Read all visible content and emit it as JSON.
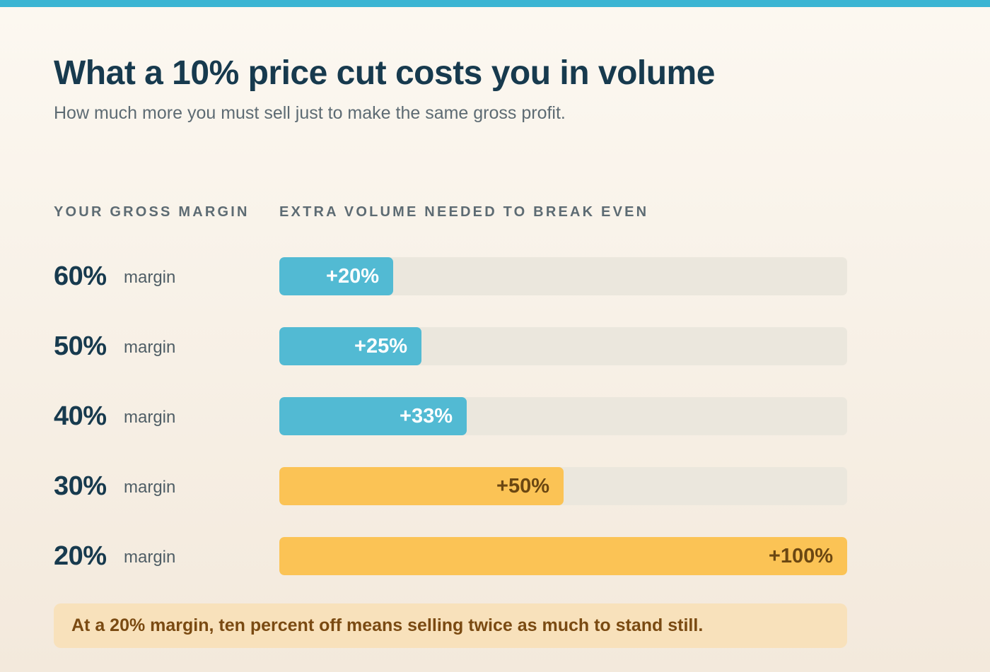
{
  "title": "What a 10% price cut costs you in volume",
  "subtitle": "How much more you must sell just to make the same gross profit.",
  "headers": {
    "left": "YOUR GROSS MARGIN",
    "right": "EXTRA VOLUME NEEDED TO BREAK EVEN"
  },
  "margin_suffix": "margin",
  "callout": "At a 20% margin, ten percent off means selling twice as much to stand still.",
  "colors": {
    "accent_blue": "#52bad3",
    "accent_amber": "#fbc355",
    "label_on_blue": "#ffffff",
    "label_on_amber": "#6b4712",
    "track": "#ebe7dd",
    "top_stripe": "#3bb5d3"
  },
  "chart_data": {
    "type": "bar",
    "orientation": "horizontal",
    "categories": [
      "60%",
      "50%",
      "40%",
      "30%",
      "20%"
    ],
    "values": [
      20,
      25,
      33,
      50,
      100
    ],
    "value_labels": [
      "+20%",
      "+25%",
      "+33%",
      "+50%",
      "+100%"
    ],
    "bar_colors": [
      "#52bad3",
      "#52bad3",
      "#52bad3",
      "#fbc355",
      "#fbc355"
    ],
    "xlim": [
      0,
      100
    ],
    "grid": false
  }
}
